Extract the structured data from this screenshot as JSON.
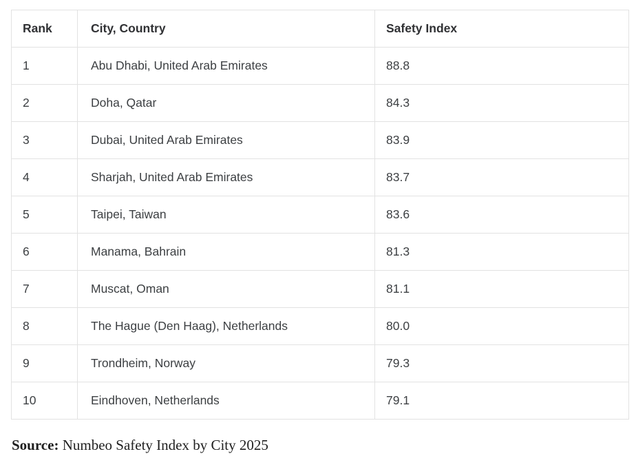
{
  "table": {
    "headers": [
      "Rank",
      "City, Country",
      "Safety Index"
    ],
    "rows": [
      {
        "rank": "1",
        "city": "Abu Dhabi, United Arab Emirates",
        "index": "88.8"
      },
      {
        "rank": "2",
        "city": "Doha, Qatar",
        "index": "84.3"
      },
      {
        "rank": "3",
        "city": "Dubai, United Arab Emirates",
        "index": "83.9"
      },
      {
        "rank": "4",
        "city": "Sharjah, United Arab Emirates",
        "index": "83.7"
      },
      {
        "rank": "5",
        "city": "Taipei, Taiwan",
        "index": "83.6"
      },
      {
        "rank": "6",
        "city": "Manama, Bahrain",
        "index": "81.3"
      },
      {
        "rank": "7",
        "city": "Muscat, Oman",
        "index": "81.1"
      },
      {
        "rank": "8",
        "city": "The Hague (Den Haag), Netherlands",
        "index": "80.0"
      },
      {
        "rank": "9",
        "city": "Trondheim, Norway",
        "index": "79.3"
      },
      {
        "rank": "10",
        "city": "Eindhoven, Netherlands",
        "index": "79.1"
      }
    ]
  },
  "footer": {
    "source_label": "Source:",
    "source_text": " Numbeo Safety Index by City 2025"
  },
  "colors": {
    "background": "#ffffff",
    "border": "#e2e2e2",
    "header_text": "#303134",
    "body_text": "#3d4043",
    "source_text": "#1f1f1f"
  }
}
